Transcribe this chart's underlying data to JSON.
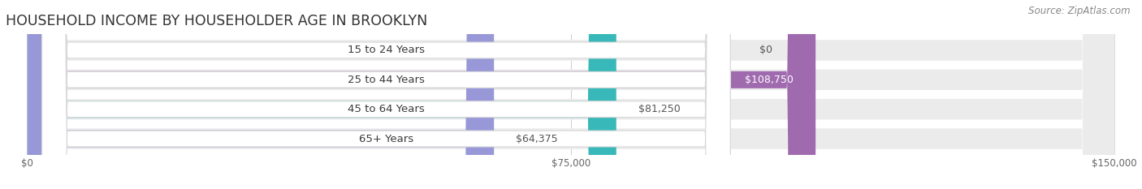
{
  "title": "HOUSEHOLD INCOME BY HOUSEHOLDER AGE IN BROOKLYN",
  "source": "Source: ZipAtlas.com",
  "categories": [
    "15 to 24 Years",
    "25 to 44 Years",
    "45 to 64 Years",
    "65+ Years"
  ],
  "values": [
    0,
    108750,
    81250,
    64375
  ],
  "labels": [
    "$0",
    "$108,750",
    "$81,250",
    "$64,375"
  ],
  "bar_colors": [
    "#a8c0e8",
    "#a06aaf",
    "#38b8b8",
    "#9898d8"
  ],
  "background_track_color": "#ebebeb",
  "xlim_min": 0,
  "xlim_max": 150000,
  "xticks": [
    0,
    75000,
    150000
  ],
  "xtick_labels": [
    "$0",
    "$75,000",
    "$150,000"
  ],
  "title_fontsize": 12.5,
  "label_fontsize": 9,
  "source_fontsize": 8.5,
  "tick_fontsize": 8.5,
  "category_fontsize": 9.5
}
